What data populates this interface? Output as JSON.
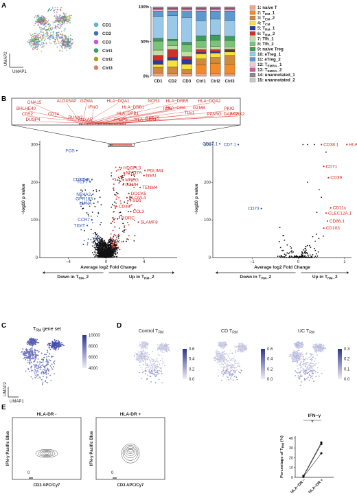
{
  "figure": {
    "panel_labels": [
      "A",
      "B",
      "C",
      "D",
      "E"
    ]
  },
  "panelA": {
    "umap_axes": {
      "x": "UMAP1",
      "y": "UMAP2"
    },
    "sample_legend": [
      {
        "label": "CD1",
        "color": "#5bb5cf"
      },
      {
        "label": "CD2",
        "color": "#3f6fbf"
      },
      {
        "label": "CD3",
        "color": "#c45ad0"
      },
      {
        "label": "Ctrl1",
        "color": "#2f9e6a"
      },
      {
        "label": "Ctrl2",
        "color": "#b59a1e"
      },
      {
        "label": "Ctrl3",
        "color": "#d9825a"
      }
    ],
    "cluster_legend": [
      {
        "label": "1: naive T",
        "color": "#f3a58a"
      },
      {
        "label": "2: T_EM_1",
        "color": "#f28c2a"
      },
      {
        "label": "3: T_EM_2",
        "color": "#cf8a3a"
      },
      {
        "label": "4: T_CM",
        "color": "#f7e23a"
      },
      {
        "label": "5: T_RM_1",
        "color": "#2a3a9e"
      },
      {
        "label": "6: T_RM_2",
        "color": "#d0302a"
      },
      {
        "label": "7: Tfh_1",
        "color": "#bfe0a0"
      },
      {
        "label": "8: Tfh_2",
        "color": "#7ac47a"
      },
      {
        "label": "9: naive Treg",
        "color": "#3a9e5a"
      },
      {
        "label": "10: eTreg_1",
        "color": "#9ac8e8"
      },
      {
        "label": "11: eTreg_2",
        "color": "#5a9ad0"
      },
      {
        "label": "12: T_EMRA_1",
        "color": "#f2c8d8"
      },
      {
        "label": "13: T_EMRA_2",
        "color": "#d05a9a"
      },
      {
        "label": "14: unannotated_1",
        "color": "#8a8a8a"
      },
      {
        "label": "15: unannotated_2",
        "color": "#c8c8c8"
      }
    ]
  },
  "chart_data": [
    {
      "type": "bar",
      "stacked": true,
      "categories": [
        "CD1",
        "CD2",
        "CD3",
        "Ctrl1",
        "Ctrl2",
        "Ctrl3"
      ],
      "yticks": [
        "0%",
        "50%",
        "100%"
      ],
      "ylim": [
        0,
        100
      ],
      "series": [
        {
          "name": "1: naive T",
          "values": [
            4,
            3,
            3,
            4,
            3,
            3
          ]
        },
        {
          "name": "2: T_EM_1",
          "values": [
            0,
            0,
            0,
            12,
            15,
            14
          ]
        },
        {
          "name": "3: T_EM_2",
          "values": [
            8,
            10,
            6,
            8,
            8,
            12
          ]
        },
        {
          "name": "4: T_CM",
          "values": [
            4,
            9,
            7,
            7,
            6,
            5
          ]
        },
        {
          "name": "5: T_RM_1",
          "values": [
            5,
            4,
            6,
            2,
            2,
            2
          ]
        },
        {
          "name": "6: T_RM_2",
          "values": [
            7,
            11,
            4,
            4,
            3,
            2
          ]
        },
        {
          "name": "7: Tfh_1",
          "values": [
            7,
            5,
            7,
            3,
            4,
            3
          ]
        },
        {
          "name": "8: Tfh_2",
          "values": [
            12,
            7,
            9,
            9,
            9,
            9
          ]
        },
        {
          "name": "9: naive Treg",
          "values": [
            4,
            2,
            3,
            7,
            7,
            6
          ]
        },
        {
          "name": "10: eTreg_1",
          "values": [
            29,
            33,
            33,
            21,
            22,
            22
          ]
        },
        {
          "name": "11: eTreg_2",
          "values": [
            7,
            6,
            8,
            13,
            11,
            13
          ]
        },
        {
          "name": "12: T_EMRA_1",
          "values": [
            2,
            2,
            2,
            2,
            2,
            2
          ]
        },
        {
          "name": "13: T_EMRA_2",
          "values": [
            2,
            2,
            2,
            2,
            2,
            2
          ]
        },
        {
          "name": "14: unannotated_1",
          "values": [
            1,
            1,
            1,
            1,
            1,
            1
          ]
        },
        {
          "name": "15: unannotated_2",
          "values": [
            1,
            1,
            1,
            1,
            1,
            1
          ]
        }
      ]
    },
    {
      "type": "scatter",
      "xlabel": "Average log2 Fold Change",
      "ylabel": "−log10 p value",
      "xlim": [
        -7,
        7.5
      ],
      "ylim": [
        0,
        310
      ],
      "xticks": [
        "−4",
        "0",
        "4"
      ],
      "yticks": [
        "0",
        "100",
        "200",
        "300"
      ],
      "direction_labels": [
        "Down in T_RM_2",
        "Up in T_RM_2"
      ],
      "labeled_points": [
        {
          "label": "FOS",
          "x": -3.1,
          "y": 284,
          "group": "down"
        },
        {
          "label": "CD27",
          "x": -2.1,
          "y": 207,
          "group": "down"
        },
        {
          "label": "JUNB",
          "x": -1.5,
          "y": 207,
          "group": "down"
        },
        {
          "label": "TCF7",
          "x": -1.7,
          "y": 201,
          "group": "down"
        },
        {
          "label": "NR4A2",
          "x": -1.4,
          "y": 168,
          "group": "down"
        },
        {
          "label": "GPR183",
          "x": -1.2,
          "y": 156,
          "group": "down"
        },
        {
          "label": "LMNA",
          "x": -1.3,
          "y": 144,
          "group": "down"
        },
        {
          "label": "CCR7",
          "x": -1.5,
          "y": 100,
          "group": "down"
        },
        {
          "label": "TIGIT",
          "x": -2.0,
          "y": 85,
          "group": "down"
        },
        {
          "label": "HDGFL3",
          "x": 1.6,
          "y": 238,
          "group": "up"
        },
        {
          "label": "PDLIM4",
          "x": 4.1,
          "y": 231,
          "group": "up"
        },
        {
          "label": "MYO7A",
          "x": 1.9,
          "y": 225,
          "group": "up"
        },
        {
          "label": "NMU",
          "x": 4.0,
          "y": 218,
          "group": "up"
        },
        {
          "label": "MREG",
          "x": 1.8,
          "y": 206,
          "group": "up"
        },
        {
          "label": "GZMH",
          "x": 1.8,
          "y": 193,
          "group": "up"
        },
        {
          "label": "TENM4",
          "x": 3.6,
          "y": 186,
          "group": "up"
        },
        {
          "label": "DOCK5",
          "x": 2.4,
          "y": 170,
          "group": "up"
        },
        {
          "label": "ELOVL4",
          "x": 2.2,
          "y": 159,
          "group": "up"
        },
        {
          "label": "FSD1",
          "x": 2.3,
          "y": 151,
          "group": "up"
        },
        {
          "label": "CD38",
          "x": 1.1,
          "y": 136,
          "group": "up"
        },
        {
          "label": "CCL3",
          "x": 2.6,
          "y": 122,
          "group": "up"
        },
        {
          "label": "RORC",
          "x": 1.4,
          "y": 105,
          "group": "up"
        },
        {
          "label": "SLAMF8",
          "x": 3.4,
          "y": 94,
          "group": "up"
        }
      ],
      "inset_labels": [
        "GNA15",
        "ALOX5AP",
        "GZMA",
        "HLA−DQA1",
        "NCR3",
        "HLA−DRB5",
        "HLA−DQA2",
        "BHLHE40",
        "IFNG",
        "HLA−DRB1",
        "IL26",
        "HLA−DRA",
        "GZMB",
        "PKIG",
        "CD52",
        "CD74",
        "HLA−DPB1",
        "TLE1",
        "PPARG",
        "DAPK2",
        "NTRK2",
        "DUSP4",
        "RUNX2",
        "ANXA5",
        "FABP5",
        "HLA−DPA1",
        "GPR25"
      ]
    },
    {
      "type": "scatter",
      "xlabel": "Average log2 Fold Change",
      "ylabel": "−log10 p value",
      "xlim": [
        -1.85,
        1.15
      ],
      "ylim": [
        0,
        310
      ],
      "xticks": [
        "−1",
        "0",
        "1"
      ],
      "yticks": [
        "0",
        "100",
        "200",
        "300"
      ],
      "direction_labels": [
        "Down in T_RM_2",
        "Up in T_RM_2"
      ],
      "labeled_points": [
        {
          "label": "CD27.1",
          "x": -1.7,
          "y": 302,
          "group": "down"
        },
        {
          "label": "CD7.1",
          "x": -1.3,
          "y": 300,
          "group": "down"
        },
        {
          "label": "CD73",
          "x": -0.8,
          "y": 130,
          "group": "down"
        },
        {
          "label": "CD38.1",
          "x": 0.5,
          "y": 300,
          "group": "up"
        },
        {
          "label": "HLA−DR",
          "x": 1.05,
          "y": 300,
          "group": "up"
        },
        {
          "label": "CD71",
          "x": 0.55,
          "y": 242,
          "group": "up"
        },
        {
          "label": "CD39",
          "x": 0.65,
          "y": 212,
          "group": "up"
        },
        {
          "label": "CD11c",
          "x": 0.7,
          "y": 132,
          "group": "up"
        },
        {
          "label": "CLEC12A.1",
          "x": 0.6,
          "y": 118,
          "group": "up"
        },
        {
          "label": "CD86.1",
          "x": 0.63,
          "y": 97,
          "group": "up"
        },
        {
          "label": "CD103",
          "x": 0.55,
          "y": 78,
          "group": "up"
        }
      ]
    },
    {
      "type": "scatter",
      "title": "IFN−γ",
      "ylabel": "Percentage of T_RM (%)",
      "categories": [
        "HLA−DR −",
        "HLA−DR +"
      ],
      "ylim": [
        0,
        42
      ],
      "yticks": [
        "0",
        "10",
        "20",
        "30",
        "40"
      ],
      "significance": "*",
      "series": [
        {
          "values": [
            1.5,
            35.5
          ]
        },
        {
          "values": [
            1.0,
            34.0
          ]
        },
        {
          "values": [
            0.5,
            24.5
          ]
        }
      ]
    }
  ],
  "panelB": {
    "direction_down_prefix": "Down in T",
    "direction_down_sub": "RM",
    "direction_down_suffix": "_2",
    "direction_up_prefix": "Up in T",
    "direction_up_sub": "RM",
    "direction_up_suffix": "_2"
  },
  "panelC": {
    "title_prefix": "T",
    "title_sub": "RM",
    "title_suffix": " gene set",
    "colorbar_ticks": [
      "10000",
      "8000",
      "6000",
      "4000"
    ],
    "axes": {
      "x": "UMAP1",
      "y": "UMAP2"
    }
  },
  "panelD": {
    "plots": [
      {
        "title_prefix": "Control T",
        "title_sub": "RM",
        "ticks": [
          "0.6",
          "0.4",
          "0.2",
          "0.0"
        ]
      },
      {
        "title_prefix": "CD T",
        "title_sub": "RM",
        "ticks": [
          "0.6",
          "0.4",
          "0.2",
          "0.0"
        ]
      },
      {
        "title_prefix": "UC T",
        "title_sub": "RM",
        "ticks": [
          "0.3",
          "0.2",
          "0.1",
          "0.0"
        ]
      }
    ]
  },
  "panelE": {
    "flow": [
      {
        "title": "HLA-DR -",
        "ylabel": "IFN-γ Pacific Blue",
        "xlabel": "CD3 APC/Cy7",
        "zero": "0"
      },
      {
        "title": "HLA-DR +",
        "ylabel": "IFN-γ Pacific Blue",
        "xlabel": "CD3 APC/Cy7",
        "zero": "0"
      }
    ]
  }
}
